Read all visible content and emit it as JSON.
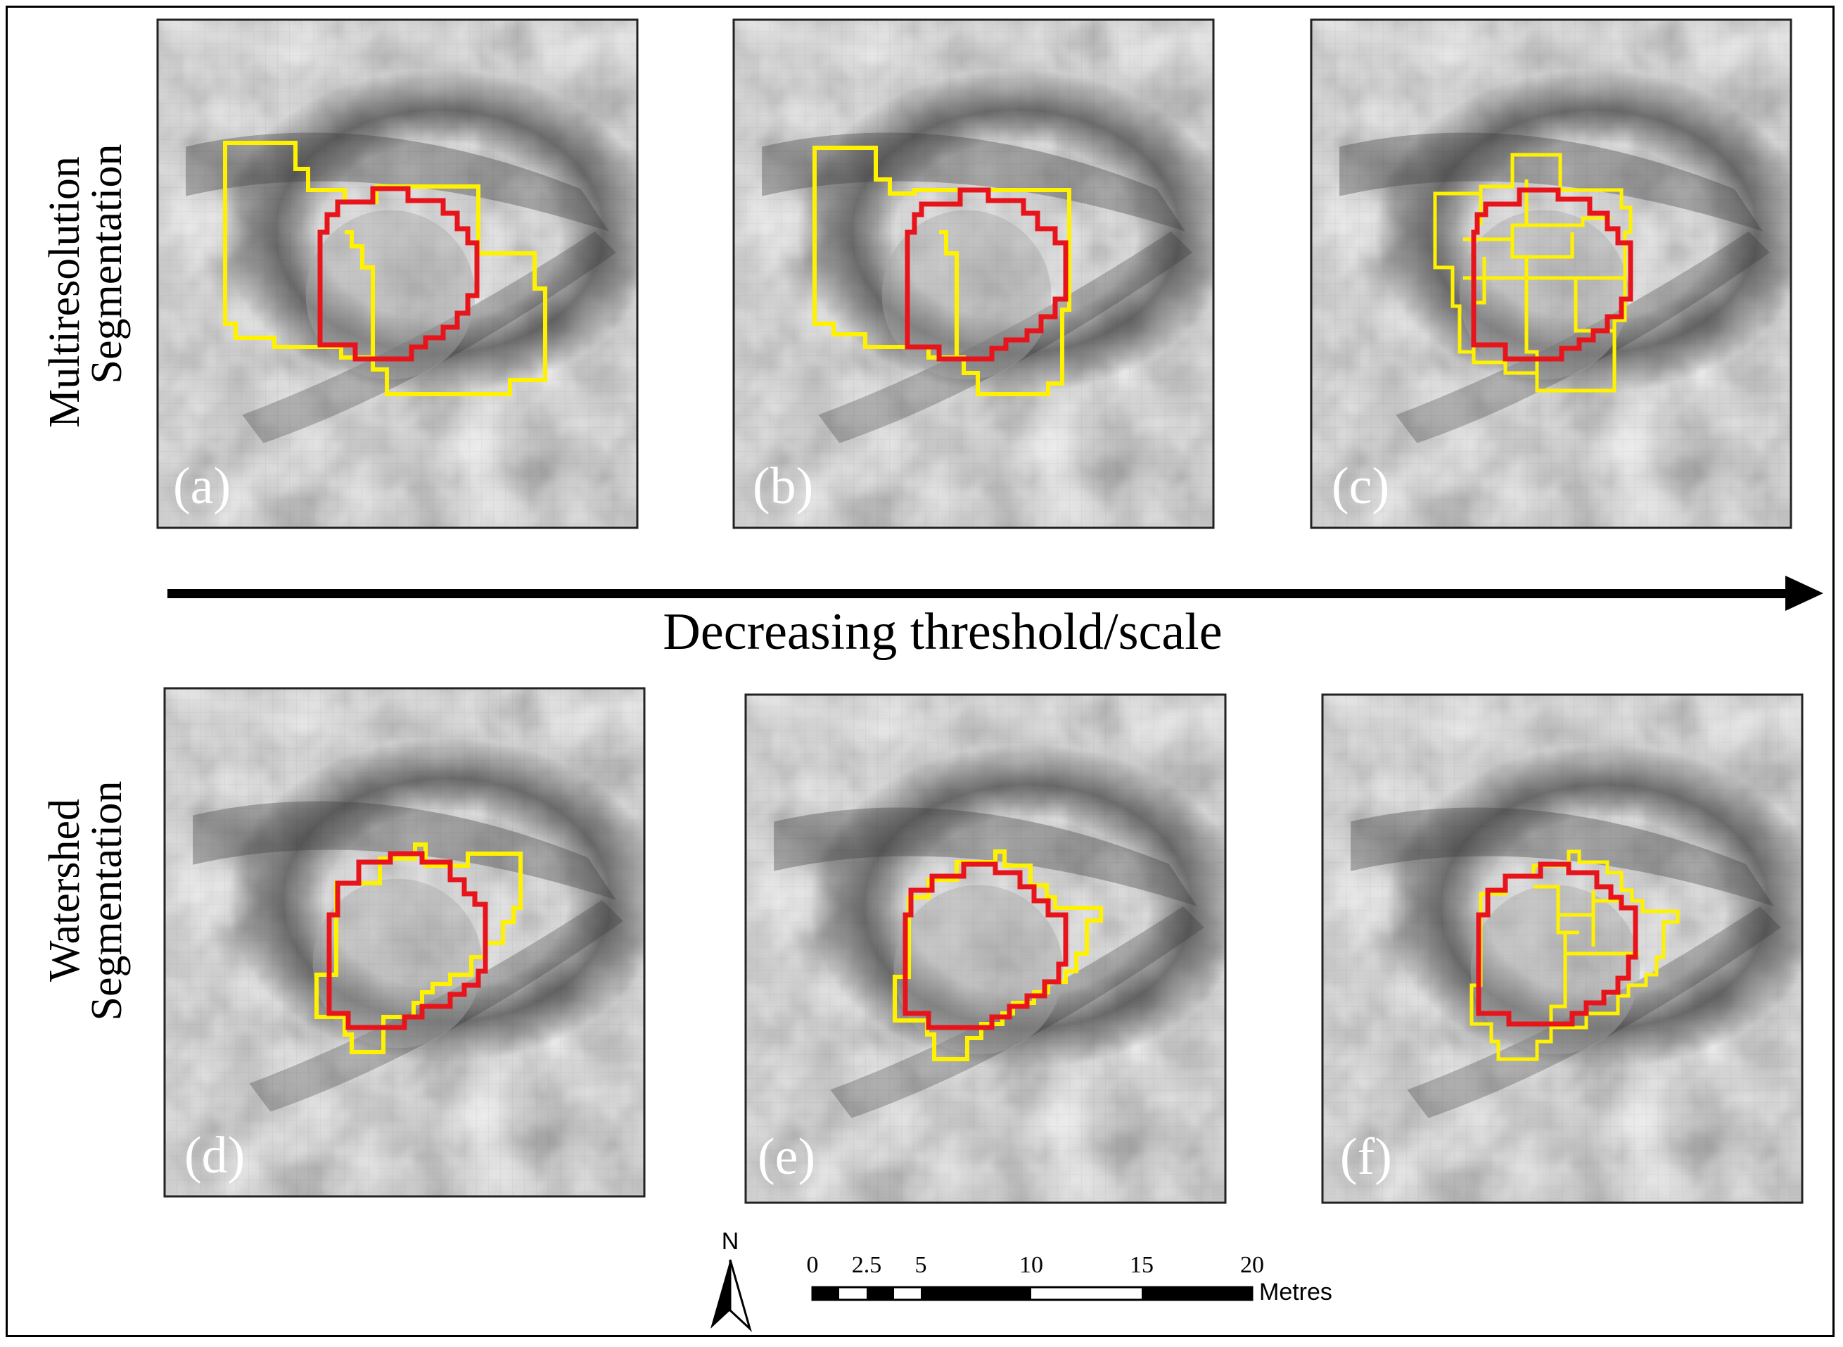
{
  "rows": [
    {
      "label_line1": "Multiresolution",
      "label_line2": "Segmentation"
    },
    {
      "label_line1": "Watershed",
      "label_line2": "Segmentation"
    }
  ],
  "panels": [
    {
      "label": "(a)"
    },
    {
      "label": "(b)"
    },
    {
      "label": "(c)"
    },
    {
      "label": "(d)"
    },
    {
      "label": "(e)"
    },
    {
      "label": "(f)"
    }
  ],
  "arrow_label": "Decreasing threshold/scale",
  "north_label": "N",
  "scale_bar": {
    "ticks": [
      "0",
      "2.5",
      "5",
      "10",
      "15",
      "20"
    ],
    "unit": "Metres"
  },
  "colors": {
    "reference_outline": "#e8141b",
    "segment_outline": "#fff200"
  }
}
